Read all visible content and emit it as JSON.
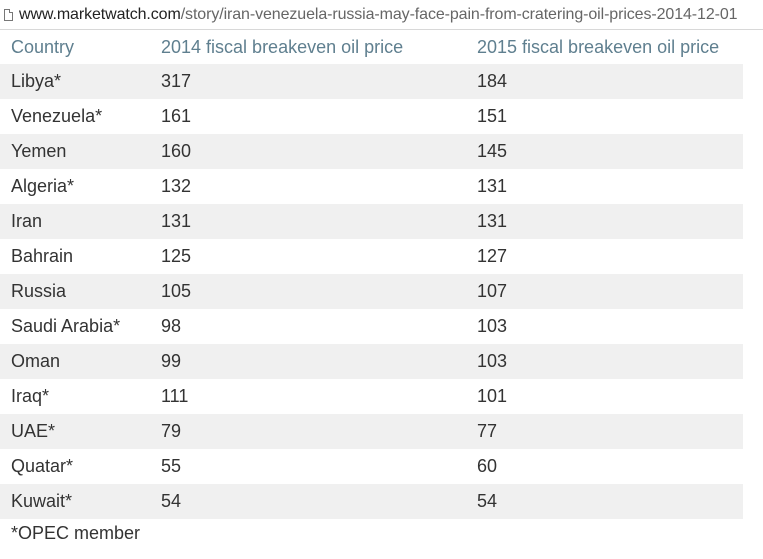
{
  "address_bar": {
    "host": "www.marketwatch.com",
    "path": "/story/iran-venezuela-russia-may-face-pain-from-cratering-oil-prices-2014-12-01",
    "icon": "page-icon"
  },
  "table": {
    "headers": [
      "Country",
      "2014 fiscal breakeven oil price",
      "2015 fiscal breakeven oil price"
    ],
    "header_color": "#5f7f8f",
    "stripe_color": "#f0f0f0",
    "rows": [
      {
        "country": "Libya*",
        "y2014": "317",
        "y2015": "184"
      },
      {
        "country": "Venezuela*",
        "y2014": "161",
        "y2015": "151"
      },
      {
        "country": "Yemen",
        "y2014": "160",
        "y2015": "145"
      },
      {
        "country": "Algeria*",
        "y2014": "132",
        "y2015": "131"
      },
      {
        "country": "Iran",
        "y2014": "131",
        "y2015": "131"
      },
      {
        "country": "Bahrain",
        "y2014": "125",
        "y2015": "127"
      },
      {
        "country": "Russia",
        "y2014": "105",
        "y2015": "107"
      },
      {
        "country": "Saudi Arabia*",
        "y2014": "98",
        "y2015": "103"
      },
      {
        "country": "Oman",
        "y2014": "99",
        "y2015": "103"
      },
      {
        "country": "Iraq*",
        "y2014": "111",
        "y2015": "101"
      },
      {
        "country": "UAE*",
        "y2014": "79",
        "y2015": "77"
      },
      {
        "country": "Quatar*",
        "y2014": "55",
        "y2015": "60"
      },
      {
        "country": "Kuwait*",
        "y2014": "54",
        "y2015": "54"
      }
    ]
  },
  "footnote": "*OPEC member"
}
